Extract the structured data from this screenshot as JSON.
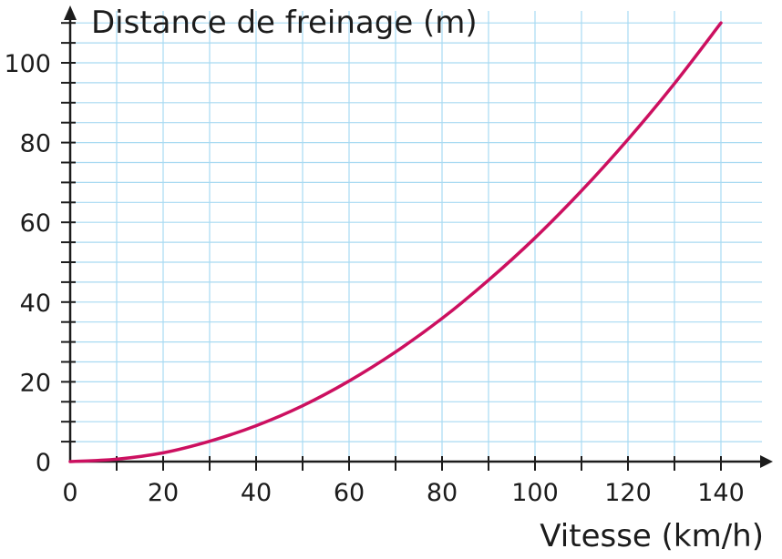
{
  "chart_data": {
    "type": "line",
    "title": "",
    "xlabel": "Vitesse (km/h)",
    "ylabel": "Distance de freinage (m)",
    "xlim": [
      0,
      140
    ],
    "ylim": [
      0,
      110
    ],
    "x_ticks": [
      "0",
      "20",
      "40",
      "60",
      "80",
      "100",
      "120",
      "140"
    ],
    "y_ticks": [
      "0",
      "20",
      "40",
      "60",
      "80",
      "100"
    ],
    "grid": true,
    "series": [
      {
        "color": "#cc1060",
        "x": [
          0,
          10,
          20,
          30,
          40,
          50,
          60,
          70,
          80,
          90,
          100,
          110,
          120,
          130,
          140
        ],
        "y": [
          0,
          0.6,
          2.2,
          5.1,
          9.0,
          14.0,
          20.2,
          27.5,
          35.9,
          45.5,
          56.1,
          67.9,
          80.8,
          94.8,
          110
        ]
      }
    ]
  }
}
